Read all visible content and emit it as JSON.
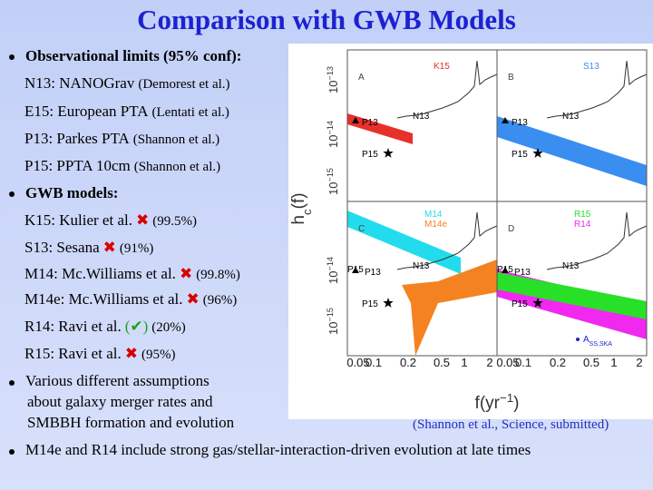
{
  "title": "Comparison with GWB Models",
  "bullets": [
    {
      "text": "Observational limits (95% conf):",
      "items": [
        {
          "name": "N13: NANOGrav",
          "ref": "(Demorest et al.)"
        },
        {
          "name": "E15: European PTA",
          "ref": "(Lentati et al.)"
        },
        {
          "name": "P13: Parkes PTA",
          "ref": "(Shannon et al.)"
        },
        {
          "name": "P15: PPTA 10cm",
          "ref": "(Shannon et al.)"
        }
      ]
    },
    {
      "text": "GWB models:",
      "items": [
        {
          "name": "K15: Kulier et al.",
          "mark": "✖",
          "conf": "(99.5%)"
        },
        {
          "name": "S13: Sesana",
          "mark": "✖",
          "conf": "(91%)"
        },
        {
          "name": "M14: Mc.Williams et al.",
          "mark": "✖",
          "conf": "(99.8%)"
        },
        {
          "name": "M14e: Mc.Williams et al.",
          "mark": "✖",
          "conf": "(96%)"
        },
        {
          "name": "R14: Ravi et al.",
          "mark": "(✔)",
          "conf": "(20%)"
        },
        {
          "name": "R15: Ravi et al.",
          "mark": "✖",
          "conf": "(95%)"
        }
      ]
    },
    {
      "lines": [
        "Various different assumptions",
        "about galaxy merger rates and",
        "SMBBH formation and evolution"
      ]
    },
    {
      "text": "M14e and R14 include strong gas/stellar-interaction-driven evolution at late times"
    }
  ],
  "figure": {
    "panels": [
      {
        "letter": "A",
        "models": [
          {
            "label": "K15",
            "color": "#e8302a"
          }
        ]
      },
      {
        "letter": "B",
        "models": [
          {
            "label": "S13",
            "color": "#3a8ef0"
          }
        ]
      },
      {
        "letter": "C",
        "models": [
          {
            "label": "M14",
            "color": "#22dced"
          },
          {
            "label": "M14e",
            "color": "#f58220"
          }
        ]
      },
      {
        "letter": "D",
        "models": [
          {
            "label": "R15",
            "color": "#28e028"
          },
          {
            "label": "R14",
            "color": "#f028f0"
          }
        ]
      }
    ],
    "pulsar_labels": {
      "p13": "P13",
      "n13": "N13",
      "p15": "P15"
    },
    "y_axis_label": {
      "base": "h",
      "sub": "c",
      "rest": "(f)"
    },
    "x_axis_label": {
      "base": "f",
      "open": "(yr",
      "exp": "−1",
      "close": ")"
    },
    "y_tick_labels": [
      {
        "base": "10",
        "exp": "−13"
      },
      {
        "base": "10",
        "exp": "−14"
      },
      {
        "base": "10",
        "exp": "−15"
      }
    ],
    "x_tick_labels": [
      "0.05",
      "0.1",
      "0.2",
      "0.5",
      "1",
      "2"
    ],
    "ska_label": {
      "base": "A",
      "sub": "SS,SKA"
    },
    "credit": "(Shannon et al., Science, submitted)"
  }
}
